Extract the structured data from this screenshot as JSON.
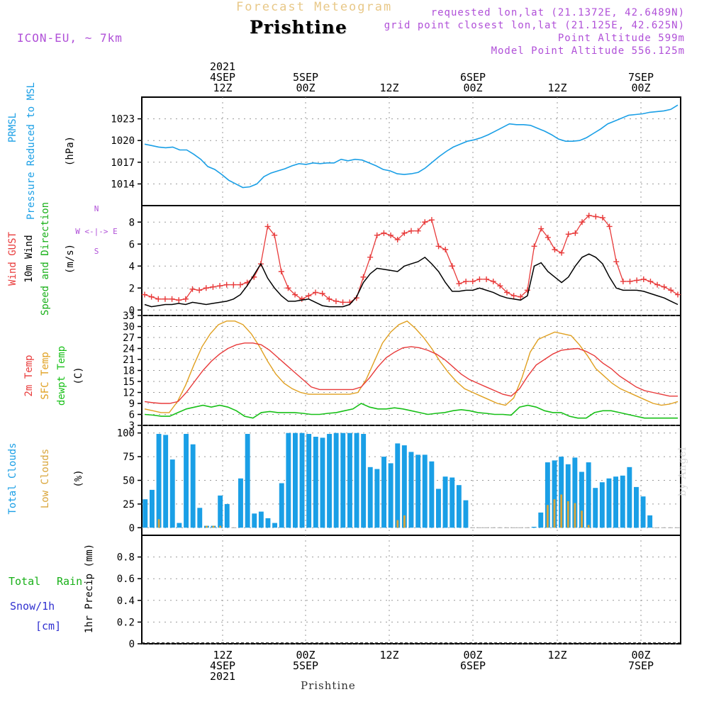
{
  "header": {
    "product_title": "Forecast Meteogram",
    "location": "Prishtine",
    "model": "ICON-EU, ~ 7km",
    "requested": "requested lon,lat (21.1372E, 42.6489N)",
    "grid_point": "grid point closest lon,lat (21.125E, 42.625N)",
    "point_altitude": "Point Altitude 599m",
    "model_altitude": "Model Point Altitude 556.125m"
  },
  "footer_location": "Prishtine",
  "watermark": "by Angel",
  "colors": {
    "pressure": "#1a9fe6",
    "gust": "#e83a3a",
    "wind": "#000000",
    "dir_label": "#18b018",
    "compass": "#b050d8",
    "temp2m": "#e83a3a",
    "sfc": "#e0a020",
    "dewpt": "#18c018",
    "total_clouds": "#1a9fe6",
    "low_clouds": "#d9a53a",
    "rain": "#18b018",
    "snow": "#3030d0",
    "header_purple": "#b050d8",
    "header_title": "#e8c888"
  },
  "chart_data": [
    {
      "type": "line",
      "panel": "pressure",
      "ylabel": [
        "PRMSL",
        "Pressure Reduced to MSL",
        "(hPa)"
      ],
      "yticks": [
        1014,
        1017,
        1020,
        1023
      ],
      "ylim": [
        1011,
        1026
      ],
      "series": [
        {
          "values": [
            1019.5,
            1019.3,
            1019.1,
            1019.0,
            1019.1,
            1018.7,
            1018.7,
            1018.1,
            1017.4,
            1016.4,
            1016.0,
            1015.3,
            1014.5,
            1014.0,
            1013.5,
            1013.6,
            1014.0,
            1015.0,
            1015.5,
            1015.8,
            1016.1,
            1016.5,
            1016.8,
            1016.7,
            1016.9,
            1016.8,
            1016.9,
            1016.9,
            1017.4,
            1017.2,
            1017.4,
            1017.3,
            1016.9,
            1016.5,
            1016.0,
            1015.8,
            1015.4,
            1015.3,
            1015.4,
            1015.6,
            1016.2,
            1017.0,
            1017.8,
            1018.5,
            1019.1,
            1019.5,
            1019.9,
            1020.1,
            1020.4,
            1020.8,
            1021.3,
            1021.8,
            1022.3,
            1022.2,
            1022.2,
            1022.1,
            1021.7,
            1021.3,
            1020.8,
            1020.2,
            1019.9,
            1019.9,
            1020.0,
            1020.4,
            1021.0,
            1021.6,
            1022.3,
            1022.7,
            1023.1,
            1023.5,
            1023.6,
            1023.7,
            1023.9,
            1024.0,
            1024.1,
            1024.3,
            1024.9
          ]
        }
      ]
    },
    {
      "type": "line",
      "panel": "wind",
      "ylabel": [
        "Wind GUST",
        "10m Wind",
        "Speed and Direction",
        "(m/s)"
      ],
      "compass": [
        "N",
        "W <-|-> E",
        "S"
      ],
      "yticks": [
        0,
        2,
        4,
        6,
        8
      ],
      "ylim": [
        -0.5,
        9.5
      ],
      "series": [
        {
          "name": "Wind GUST",
          "values": [
            1.4,
            1.2,
            1.0,
            1.0,
            1.0,
            0.9,
            1.0,
            1.9,
            1.8,
            2.0,
            2.1,
            2.2,
            2.3,
            2.3,
            2.3,
            2.5,
            3.0,
            4.2,
            7.6,
            6.8,
            3.5,
            2.0,
            1.4,
            1.0,
            1.3,
            1.6,
            1.5,
            1.0,
            0.8,
            0.7,
            0.7,
            1.1,
            3.0,
            4.8,
            6.8,
            7.0,
            6.8,
            6.4,
            7.0,
            7.2,
            7.2,
            8.0,
            8.2,
            5.8,
            5.5,
            4.0,
            2.4,
            2.6,
            2.6,
            2.8,
            2.8,
            2.6,
            2.2,
            1.6,
            1.3,
            1.2,
            1.8,
            5.8,
            7.4,
            6.6,
            5.5,
            5.2,
            6.9,
            7.0,
            8.0,
            8.6,
            8.5,
            8.4,
            7.6,
            4.4,
            2.6,
            2.6,
            2.7,
            2.8,
            2.6,
            2.3,
            2.1,
            1.8,
            1.4
          ]
        },
        {
          "name": "10m Wind",
          "values": [
            0.5,
            0.3,
            0.4,
            0.5,
            0.5,
            0.6,
            0.5,
            0.7,
            0.6,
            0.5,
            0.6,
            0.7,
            0.8,
            1.0,
            1.4,
            2.2,
            3.2,
            4.2,
            2.9,
            2.0,
            1.3,
            0.8,
            0.8,
            0.9,
            1.0,
            0.7,
            0.4,
            0.3,
            0.3,
            0.3,
            0.5,
            1.2,
            2.5,
            3.3,
            3.8,
            3.7,
            3.6,
            3.5,
            4.0,
            4.2,
            4.4,
            4.8,
            4.2,
            3.5,
            2.5,
            1.7,
            1.7,
            1.8,
            1.8,
            2.0,
            1.8,
            1.6,
            1.3,
            1.1,
            1.0,
            0.9,
            1.3,
            4.0,
            4.3,
            3.5,
            3.0,
            2.5,
            3.0,
            4.0,
            4.8,
            5.1,
            4.8,
            4.2,
            3.0,
            2.0,
            1.8,
            1.8,
            1.8,
            1.7,
            1.5,
            1.3,
            1.1,
            0.8,
            0.5
          ]
        }
      ]
    },
    {
      "type": "line",
      "panel": "temperature",
      "ylabel": [
        "2m Temp",
        "SFC Temp",
        "dewpt Temp",
        "(C)"
      ],
      "yticks": [
        3,
        6,
        9,
        12,
        15,
        18,
        21,
        24,
        27,
        30,
        33
      ],
      "ylim": [
        3,
        33
      ],
      "series": [
        {
          "name": "2m Temp",
          "values": [
            9.5,
            9.2,
            9.0,
            9.0,
            9.5,
            12.0,
            15.0,
            18.0,
            20.5,
            22.5,
            24.0,
            25.0,
            25.5,
            25.5,
            25.0,
            23.5,
            21.5,
            19.5,
            17.5,
            15.5,
            13.5,
            12.8,
            12.8,
            12.8,
            12.8,
            12.8,
            13.5,
            16.0,
            19.0,
            21.5,
            23.0,
            24.2,
            24.5,
            24.2,
            23.5,
            22.5,
            21.0,
            19.0,
            17.0,
            15.5,
            14.5,
            13.5,
            12.5,
            11.5,
            11.0,
            13.0,
            16.5,
            19.5,
            21.0,
            22.5,
            23.5,
            23.8,
            24.0,
            23.2,
            22.0,
            20.0,
            18.5,
            16.5,
            15.0,
            13.5,
            12.5,
            12.0,
            11.5,
            11.0,
            11.0
          ]
        },
        {
          "name": "SFC Temp",
          "values": [
            7.5,
            7.0,
            6.5,
            6.5,
            9.5,
            14.0,
            19.5,
            24.5,
            28.0,
            30.5,
            31.5,
            31.5,
            30.5,
            28.0,
            24.5,
            20.5,
            17.0,
            14.5,
            13.0,
            12.0,
            11.5,
            11.5,
            11.5,
            11.5,
            11.5,
            11.5,
            12.0,
            15.5,
            20.5,
            25.5,
            28.5,
            30.5,
            31.5,
            29.5,
            27.0,
            24.0,
            20.5,
            17.5,
            15.0,
            13.0,
            12.0,
            11.0,
            10.0,
            9.0,
            8.5,
            10.5,
            16.0,
            23.0,
            26.5,
            27.5,
            28.5,
            28.0,
            27.5,
            25.0,
            22.0,
            18.5,
            16.5,
            14.5,
            13.0,
            12.0,
            11.0,
            10.0,
            9.0,
            8.5,
            8.8,
            9.5
          ]
        },
        {
          "name": "dewpt Temp",
          "values": [
            6.0,
            5.8,
            5.5,
            5.5,
            6.5,
            7.5,
            8.0,
            8.5,
            8.0,
            8.5,
            8.0,
            7.0,
            5.5,
            5.0,
            6.5,
            6.8,
            6.5,
            6.5,
            6.5,
            6.3,
            6.0,
            6.0,
            6.3,
            6.5,
            7.0,
            7.5,
            9.0,
            8.0,
            7.5,
            7.5,
            7.8,
            7.5,
            7.0,
            6.5,
            6.0,
            6.3,
            6.5,
            7.0,
            7.3,
            7.0,
            6.5,
            6.3,
            6.0,
            6.0,
            5.8,
            8.0,
            8.5,
            8.0,
            7.0,
            6.5,
            6.5,
            5.5,
            5.0,
            5.0,
            6.5,
            7.0,
            7.0,
            6.5,
            6.0,
            5.5,
            5.0,
            5.0,
            5.0,
            5.0,
            5.0
          ]
        }
      ]
    },
    {
      "type": "bar",
      "panel": "clouds",
      "ylabel": [
        "Total Clouds",
        "Low Clouds",
        "(%)"
      ],
      "yticks": [
        0,
        25,
        50,
        75,
        100
      ],
      "ylim": [
        -8,
        108
      ],
      "series": [
        {
          "name": "Total Clouds",
          "values": [
            30,
            40,
            99,
            98,
            72,
            5,
            99,
            88,
            21,
            2,
            2,
            34,
            25,
            0,
            52,
            99,
            15,
            17,
            10,
            5,
            47,
            100,
            100,
            100,
            99,
            96,
            95,
            99,
            100,
            100,
            100,
            100,
            99,
            64,
            62,
            75,
            68,
            89,
            87,
            80,
            77,
            77,
            70,
            41,
            54,
            53,
            45,
            29,
            0,
            0,
            0,
            0,
            0,
            0,
            0,
            0,
            0,
            1,
            16,
            69,
            71,
            75,
            67,
            74,
            59,
            69,
            42,
            48,
            52,
            54,
            55,
            64,
            43,
            33,
            13,
            0,
            0,
            0,
            0
          ]
        },
        {
          "name": "Low Clouds",
          "values": [
            0,
            0,
            9,
            0,
            0,
            0,
            0,
            0,
            0,
            2,
            2,
            2,
            0,
            0,
            0,
            0,
            0,
            0,
            0,
            0,
            0,
            0,
            0,
            0,
            0,
            0,
            0,
            0,
            0,
            0,
            0,
            0,
            0,
            0,
            0,
            0,
            0,
            8,
            13,
            0,
            0,
            0,
            0,
            0,
            0,
            0,
            0,
            0,
            0,
            0,
            0,
            0,
            0,
            0,
            0,
            0,
            0,
            0,
            0,
            24,
            30,
            35,
            28,
            26,
            18,
            3,
            0,
            0,
            0,
            0,
            0,
            0,
            0,
            0,
            0,
            0,
            0,
            0,
            0
          ]
        }
      ]
    },
    {
      "type": "bar",
      "panel": "precipitation",
      "ylabel": [
        "1hr Precip (mm)"
      ],
      "legend": [
        "Total",
        "Rain",
        "Snow/1h",
        "[cm]"
      ],
      "yticks": [
        "0",
        "0.2",
        "0.4",
        "0.6",
        "0.8"
      ],
      "ylim": [
        0,
        1.0
      ],
      "series": [
        {
          "name": "Total",
          "values": [
            0
          ]
        }
      ]
    }
  ],
  "xaxis": {
    "top_ticks": [
      {
        "lines": [
          "2021",
          "4SEP",
          "12Z"
        ]
      },
      {
        "lines": [
          "5SEP",
          "00Z"
        ]
      },
      {
        "lines": [
          "12Z"
        ]
      },
      {
        "lines": [
          "6SEP",
          "00Z"
        ]
      },
      {
        "lines": [
          "12Z"
        ]
      },
      {
        "lines": [
          "7SEP",
          "00Z"
        ]
      }
    ],
    "bottom_ticks": [
      {
        "lines": [
          "12Z",
          "4SEP",
          "2021"
        ]
      },
      {
        "lines": [
          "00Z",
          "5SEP"
        ]
      },
      {
        "lines": [
          "12Z"
        ]
      },
      {
        "lines": [
          "00Z",
          "6SEP"
        ]
      },
      {
        "lines": [
          "12Z"
        ]
      },
      {
        "lines": [
          "00Z",
          "7SEP"
        ]
      }
    ]
  }
}
